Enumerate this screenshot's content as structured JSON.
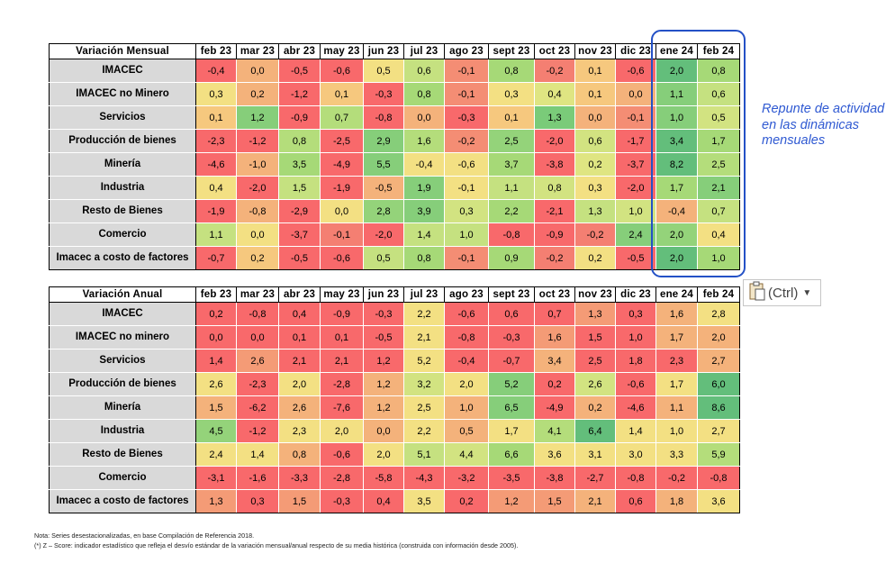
{
  "mensual": {
    "title": "Variación Mensual",
    "months": [
      "feb 23",
      "mar 23",
      "abr 23",
      "may 23",
      "jun 23",
      "jul 23",
      "ago 23",
      "sept 23",
      "oct 23",
      "nov 23",
      "dic 23",
      "ene 24",
      "feb 24"
    ],
    "rows": [
      {
        "label": "IMACEC",
        "values": [
          "-0,4",
          "0,0",
          "-0,5",
          "-0,6",
          "0,5",
          "0,6",
          "-0,1",
          "0,8",
          "-0,2",
          "0,1",
          "-0,6",
          "2,0",
          "0,8"
        ],
        "colors": [
          "#f8696b",
          "#f4b27b",
          "#f8696b",
          "#f8696b",
          "#f3e083",
          "#c5e180",
          "#f48d74",
          "#a6d977",
          "#f47f72",
          "#f6c87e",
          "#f8696b",
          "#63be7b",
          "#a6d977"
        ]
      },
      {
        "label": "IMACEC no Minero",
        "values": [
          "0,3",
          "0,2",
          "-1,2",
          "0,1",
          "-0,3",
          "0,8",
          "-0,1",
          "0,3",
          "0,4",
          "0,1",
          "0,0",
          "1,1",
          "0,6"
        ],
        "colors": [
          "#f3e083",
          "#f4b27b",
          "#f8696b",
          "#f6c87e",
          "#f8696b",
          "#a6d977",
          "#f48d74",
          "#f3e083",
          "#dfe582",
          "#f6c87e",
          "#f4b27b",
          "#86ce7a",
          "#c5e180"
        ]
      },
      {
        "label": "Servicios",
        "values": [
          "0,1",
          "1,2",
          "-0,9",
          "0,7",
          "-0,8",
          "0,0",
          "-0,3",
          "0,1",
          "1,3",
          "0,0",
          "-0,1",
          "1,0",
          "0,5"
        ],
        "colors": [
          "#f6c87e",
          "#86ce7a",
          "#f8696b",
          "#b4dd7b",
          "#f8696b",
          "#f4b27b",
          "#f8696b",
          "#f6c87e",
          "#7acb79",
          "#f4b27b",
          "#f48d74",
          "#86ce7a",
          "#d2e381"
        ]
      },
      {
        "label": "Producción de bienes",
        "values": [
          "-2,3",
          "-1,2",
          "0,8",
          "-2,5",
          "2,9",
          "1,6",
          "-0,2",
          "2,5",
          "-2,0",
          "0,6",
          "-1,7",
          "3,4",
          "1,7"
        ],
        "colors": [
          "#f8696b",
          "#f8696b",
          "#b4dd7b",
          "#f8696b",
          "#86ce7a",
          "#b4dd7b",
          "#f48d74",
          "#94d37a",
          "#f8696b",
          "#d2e381",
          "#f8696b",
          "#63be7b",
          "#a6d977"
        ]
      },
      {
        "label": "Minería",
        "values": [
          "-4,6",
          "-1,0",
          "3,5",
          "-4,9",
          "5,5",
          "-0,4",
          "-0,6",
          "3,7",
          "-3,8",
          "0,2",
          "-3,7",
          "8,2",
          "2,5"
        ],
        "colors": [
          "#f8696b",
          "#f4b27b",
          "#a6d977",
          "#f8696b",
          "#86ce7a",
          "#f3e083",
          "#f3e083",
          "#a6d977",
          "#f8696b",
          "#dfe582",
          "#f8696b",
          "#63be7b",
          "#b4dd7b"
        ]
      },
      {
        "label": "Industria",
        "values": [
          "0,4",
          "-2,0",
          "1,5",
          "-1,9",
          "-0,5",
          "1,9",
          "-0,1",
          "1,1",
          "0,8",
          "0,3",
          "-2,0",
          "1,7",
          "2,1"
        ],
        "colors": [
          "#f3e083",
          "#f8696b",
          "#c5e180",
          "#f8696b",
          "#f4b27b",
          "#86ce7a",
          "#f3e083",
          "#c5e180",
          "#d2e381",
          "#f3e083",
          "#f8696b",
          "#a6d977",
          "#86ce7a"
        ]
      },
      {
        "label": "Resto de Bienes",
        "values": [
          "-1,9",
          "-0,8",
          "-2,9",
          "0,0",
          "2,8",
          "3,9",
          "0,3",
          "2,2",
          "-2,1",
          "1,3",
          "1,0",
          "-0,4",
          "0,7"
        ],
        "colors": [
          "#f8696b",
          "#f4b27b",
          "#f8696b",
          "#f3e083",
          "#94d37a",
          "#86ce7a",
          "#d2e381",
          "#a6d977",
          "#f8696b",
          "#c5e180",
          "#d2e381",
          "#f4b27b",
          "#c5e180"
        ]
      },
      {
        "label": "Comercio",
        "values": [
          "1,1",
          "0,0",
          "-3,7",
          "-0,1",
          "-2,0",
          "1,4",
          "1,0",
          "-0,8",
          "-0,9",
          "-0,2",
          "2,4",
          "2,0",
          "0,4"
        ],
        "colors": [
          "#c5e180",
          "#f3e083",
          "#f8696b",
          "#f47f72",
          "#f8696b",
          "#c5e180",
          "#c5e180",
          "#f8696b",
          "#f8696b",
          "#f47f72",
          "#86ce7a",
          "#94d37a",
          "#f3e083"
        ]
      },
      {
        "label": "Imacec a costo de factores",
        "values": [
          "-0,7",
          "0,2",
          "-0,5",
          "-0,6",
          "0,5",
          "0,8",
          "-0,1",
          "0,9",
          "-0,2",
          "0,2",
          "-0,5",
          "2,0",
          "1,0"
        ],
        "colors": [
          "#f8696b",
          "#f6c87e",
          "#f8696b",
          "#f8696b",
          "#c5e180",
          "#a6d977",
          "#f48d74",
          "#a6d977",
          "#f47f72",
          "#f3e083",
          "#f8696b",
          "#63be7b",
          "#a6d977"
        ]
      }
    ]
  },
  "anual": {
    "title": "Variación Anual",
    "months": [
      "feb 23",
      "mar 23",
      "abr 23",
      "may 23",
      "jun 23",
      "jul 23",
      "ago 23",
      "sept 23",
      "oct 23",
      "nov 23",
      "dic 23",
      "ene 24",
      "feb 24"
    ],
    "rows": [
      {
        "label": "IMACEC",
        "values": [
          "0,2",
          "-0,8",
          "0,4",
          "-0,9",
          "-0,3",
          "2,2",
          "-0,6",
          "0,6",
          "0,7",
          "1,3",
          "0,3",
          "1,6",
          "2,8"
        ],
        "colors": [
          "#f8696b",
          "#f8696b",
          "#f8696b",
          "#f8696b",
          "#f8696b",
          "#f3e083",
          "#f8696b",
          "#f8696b",
          "#f8696b",
          "#f49b76",
          "#f8696b",
          "#f4b27b",
          "#f3e083"
        ]
      },
      {
        "label": "IMACEC no minero",
        "values": [
          "0,0",
          "0,0",
          "0,1",
          "0,1",
          "-0,5",
          "2,1",
          "-0,8",
          "-0,3",
          "1,6",
          "1,5",
          "1,0",
          "1,7",
          "2,0"
        ],
        "colors": [
          "#f8696b",
          "#f8696b",
          "#f8696b",
          "#f8696b",
          "#f8696b",
          "#f3e083",
          "#f8696b",
          "#f8696b",
          "#f49b76",
          "#f8696b",
          "#f8696b",
          "#f4b27b",
          "#f4b27b"
        ]
      },
      {
        "label": "Servicios",
        "values": [
          "1,4",
          "2,6",
          "2,1",
          "2,1",
          "1,2",
          "5,2",
          "-0,4",
          "-0,7",
          "3,4",
          "2,5",
          "1,8",
          "2,3",
          "2,7"
        ],
        "colors": [
          "#f8696b",
          "#f49b76",
          "#f8696b",
          "#f8696b",
          "#f8696b",
          "#f3e083",
          "#f8696b",
          "#f8696b",
          "#f4b27b",
          "#f8696b",
          "#f8696b",
          "#f8696b",
          "#f4b27b"
        ]
      },
      {
        "label": "Producción de bienes",
        "values": [
          "2,6",
          "-2,3",
          "2,0",
          "-2,8",
          "1,2",
          "3,2",
          "2,0",
          "5,2",
          "0,2",
          "2,6",
          "-0,6",
          "1,7",
          "6,0"
        ],
        "colors": [
          "#f3e083",
          "#f8696b",
          "#f3e083",
          "#f8696b",
          "#f4b27b",
          "#d2e381",
          "#f3e083",
          "#86ce7a",
          "#f8696b",
          "#d2e381",
          "#f8696b",
          "#f3e083",
          "#63be7b"
        ]
      },
      {
        "label": "Minería",
        "values": [
          "1,5",
          "-6,2",
          "2,6",
          "-7,6",
          "1,2",
          "2,5",
          "1,0",
          "6,5",
          "-4,9",
          "0,2",
          "-4,6",
          "1,1",
          "8,6"
        ],
        "colors": [
          "#f4b27b",
          "#f8696b",
          "#f4b27b",
          "#f8696b",
          "#f4b27b",
          "#f3e083",
          "#f4b27b",
          "#86ce7a",
          "#f8696b",
          "#f4b27b",
          "#f8696b",
          "#f4b27b",
          "#63be7b"
        ]
      },
      {
        "label": "Industria",
        "values": [
          "4,5",
          "-1,2",
          "2,3",
          "2,0",
          "0,0",
          "2,2",
          "0,5",
          "1,7",
          "4,1",
          "6,4",
          "1,4",
          "1,0",
          "2,7"
        ],
        "colors": [
          "#94d37a",
          "#f8696b",
          "#f3e083",
          "#f3e083",
          "#f4b27b",
          "#f3e083",
          "#f4b27b",
          "#f3e083",
          "#b4dd7b",
          "#63be7b",
          "#f3e083",
          "#f3e083",
          "#f3e083"
        ]
      },
      {
        "label": "Resto de Bienes",
        "values": [
          "2,4",
          "1,4",
          "0,8",
          "-0,6",
          "2,0",
          "5,1",
          "4,4",
          "6,6",
          "3,6",
          "3,1",
          "3,0",
          "3,3",
          "5,9"
        ],
        "colors": [
          "#f3e083",
          "#f3e083",
          "#f4b27b",
          "#f8696b",
          "#f3e083",
          "#c5e180",
          "#d2e381",
          "#a6d977",
          "#f3e083",
          "#f3e083",
          "#f3e083",
          "#f3e083",
          "#b4dd7b"
        ]
      },
      {
        "label": "Comercio",
        "values": [
          "-3,1",
          "-1,6",
          "-3,3",
          "-2,8",
          "-5,8",
          "-4,3",
          "-3,2",
          "-3,5",
          "-3,8",
          "-2,7",
          "-0,8",
          "-0,2",
          "-0,8"
        ],
        "colors": [
          "#f8696b",
          "#f8696b",
          "#f8696b",
          "#f8696b",
          "#f8696b",
          "#f8696b",
          "#f8696b",
          "#f8696b",
          "#f8696b",
          "#f8696b",
          "#f8696b",
          "#f8696b",
          "#f8696b"
        ]
      },
      {
        "label": "Imacec a costo de factores",
        "values": [
          "1,3",
          "0,3",
          "1,5",
          "-0,3",
          "0,4",
          "3,5",
          "0,2",
          "1,2",
          "1,5",
          "2,1",
          "0,6",
          "1,8",
          "3,6"
        ],
        "colors": [
          "#f49b76",
          "#f8696b",
          "#f49b76",
          "#f8696b",
          "#f8696b",
          "#f3e083",
          "#f8696b",
          "#f49b76",
          "#f49b76",
          "#f4b27b",
          "#f8696b",
          "#f4b27b",
          "#f3e083"
        ]
      }
    ]
  },
  "callout": {
    "text": "Repunte de actividad en las dinámicas mensuales"
  },
  "paste_button": {
    "label": "(Ctrl)",
    "icon": "clipboard-icon"
  },
  "notes": {
    "line1": "Nota: Series desestacionalizadas, en base Compilación de Referencia 2018.",
    "line2": "(*) Z – Score: indicador estadístico que refleja el desvío estándar de la variación mensual/anual respecto de su media histórica (construida con información desde 2005)."
  },
  "colors": {
    "highlight_border": "#2451c6",
    "callout_text": "#2f59d2",
    "label_bg": "#d9d9d9"
  }
}
